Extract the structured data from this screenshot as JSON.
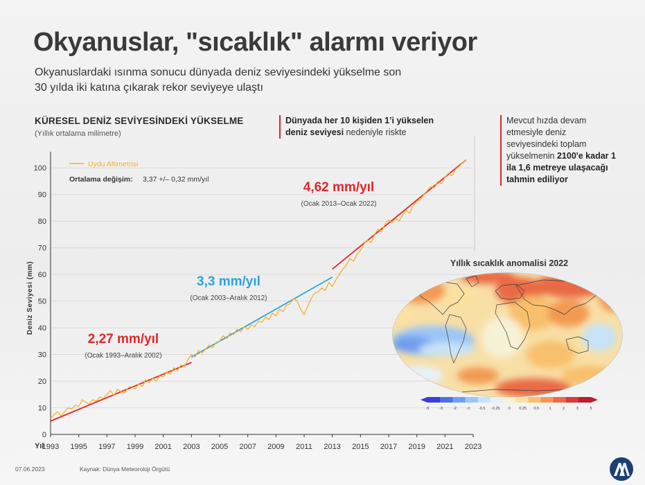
{
  "header": {
    "title": "Okyanuslar, \"sıcaklık\" alarmı veriyor",
    "subtitle_line1": "Okyanuslardaki ısınma sonucu dünyada deniz seviyesindeki yükselme son",
    "subtitle_line2": "30 yılda iki katına çıkarak rekor seviyeye ulaştı"
  },
  "chart_data": {
    "type": "line",
    "title": "KÜRESEL DENİZ SEVİYESİNDEKİ YÜKSELME",
    "subtitle": "(Yıllık ortalama milimetre)",
    "xlabel": "Yıl",
    "ylabel": "Deniz Seviyesi (mm)",
    "xlim": [
      1993,
      2023
    ],
    "ylim": [
      0,
      105
    ],
    "x_ticks": [
      "1993",
      "1995",
      "1997",
      "1999",
      "2001",
      "2003",
      "2005",
      "2007",
      "2009",
      "2011",
      "2013",
      "2015",
      "2017",
      "2019",
      "2021",
      "2023"
    ],
    "y_ticks": [
      "0",
      "10",
      "20",
      "30",
      "40",
      "50",
      "60",
      "70",
      "80",
      "90",
      "100"
    ],
    "legend": {
      "label": "Uydu Altimetrisi",
      "position": "top-left"
    },
    "annotation_mean_label": "Ortalama değişim:",
    "annotation_mean_value": "3,37 +/– 0,32 mm/yıl",
    "series": [
      {
        "name": "Uydu Altimetrisi",
        "color": "#f2b12a",
        "x": [
          1993.0,
          1993.25,
          1993.5,
          1993.75,
          1994.0,
          1994.25,
          1994.5,
          1994.75,
          1995.0,
          1995.25,
          1995.5,
          1995.75,
          1996.0,
          1996.25,
          1996.5,
          1996.75,
          1997.0,
          1997.25,
          1997.5,
          1997.75,
          1998.0,
          1998.25,
          1998.5,
          1998.75,
          1999.0,
          1999.25,
          1999.5,
          1999.75,
          2000.0,
          2000.25,
          2000.5,
          2000.75,
          2001.0,
          2001.25,
          2001.5,
          2001.75,
          2002.0,
          2002.25,
          2002.5,
          2002.75,
          2003.0,
          2003.25,
          2003.5,
          2003.75,
          2004.0,
          2004.25,
          2004.5,
          2004.75,
          2005.0,
          2005.25,
          2005.5,
          2005.75,
          2006.0,
          2006.25,
          2006.5,
          2006.75,
          2007.0,
          2007.25,
          2007.5,
          2007.75,
          2008.0,
          2008.25,
          2008.5,
          2008.75,
          2009.0,
          2009.25,
          2009.5,
          2009.75,
          2010.0,
          2010.25,
          2010.5,
          2010.75,
          2011.0,
          2011.25,
          2011.5,
          2011.75,
          2012.0,
          2012.25,
          2012.5,
          2012.75,
          2013.0,
          2013.25,
          2013.5,
          2013.75,
          2014.0,
          2014.25,
          2014.5,
          2014.75,
          2015.0,
          2015.25,
          2015.5,
          2015.75,
          2016.0,
          2016.25,
          2016.5,
          2016.75,
          2017.0,
          2017.25,
          2017.5,
          2017.75,
          2018.0,
          2018.25,
          2018.5,
          2018.75,
          2019.0,
          2019.25,
          2019.5,
          2019.75,
          2020.0,
          2020.25,
          2020.5,
          2020.75,
          2021.0,
          2021.25,
          2021.5,
          2021.75,
          2022.0,
          2022.25,
          2022.5
        ],
        "values": [
          6.0,
          7.5,
          8.5,
          7.0,
          8.5,
          10.0,
          9.5,
          11.0,
          10.5,
          13.0,
          12.0,
          11.5,
          13.0,
          12.5,
          14.0,
          13.5,
          15.0,
          16.5,
          14.5,
          17.0,
          16.0,
          15.5,
          17.5,
          18.0,
          17.0,
          19.0,
          18.0,
          20.5,
          19.5,
          21.0,
          20.0,
          22.0,
          21.5,
          23.5,
          22.5,
          25.0,
          24.0,
          26.0,
          25.5,
          28.0,
          30.0,
          29.0,
          31.5,
          30.5,
          32.0,
          33.5,
          32.5,
          34.5,
          35.0,
          37.0,
          36.0,
          38.0,
          37.5,
          39.5,
          38.5,
          40.5,
          39.5,
          41.0,
          40.5,
          42.5,
          42.0,
          44.0,
          43.0,
          45.5,
          44.5,
          47.0,
          46.0,
          48.5,
          49.0,
          51.0,
          50.0,
          47.0,
          45.0,
          48.0,
          51.0,
          53.0,
          53.5,
          55.0,
          54.0,
          57.0,
          55.5,
          58.0,
          60.0,
          62.0,
          63.5,
          66.0,
          65.0,
          67.5,
          69.0,
          71.5,
          73.0,
          72.0,
          75.0,
          77.0,
          76.0,
          79.0,
          80.5,
          79.5,
          81.0,
          80.0,
          82.5,
          84.0,
          83.0,
          86.0,
          87.5,
          88.0,
          90.0,
          91.5,
          93.0,
          92.5,
          95.0,
          94.0,
          96.5,
          98.0,
          97.0,
          99.5,
          100.5,
          102.0,
          103.0
        ]
      }
    ],
    "trends": [
      {
        "rate": "2,27 mm/yıl",
        "period": "(Ocak 1993–Aralık 2002)",
        "color": "#e2262b",
        "x": [
          1993.0,
          2003.0
        ],
        "y": [
          5.0,
          27.0
        ]
      },
      {
        "rate": "3,3 mm/yıl",
        "period": "(Ocak 2003–Aralık 2012)",
        "color": "#2aa3dd",
        "x": [
          2003.0,
          2013.0
        ],
        "y": [
          29.0,
          59.0
        ]
      },
      {
        "rate": "4,62 mm/yıl",
        "period": "(Ocak 2013–Ocak 2022)",
        "color": "#e2262b",
        "x": [
          2013.0,
          2022.5
        ],
        "y": [
          62.0,
          103.0
        ]
      }
    ]
  },
  "info_risk": {
    "line1": "Dünyada her 10 kişiden 1’i yükselen",
    "line2_bold": "deniz seviyesi",
    "line2_rest": " nedeniyle riskte"
  },
  "info_2100": {
    "text": "Mevcut hızda devam etmesiyle deniz seviyesindeki toplam yükselmenin",
    "bold": "2100'e kadar 1 ila 1,6 metreye ulaşacağı tahmin ediliyor"
  },
  "map": {
    "title": "Yıllık sıcaklık anomalisi 2022",
    "colorbar_ticks": [
      "-5",
      "-3",
      "-2",
      "-1",
      "-0.5",
      "-0.25",
      "0",
      "0.25",
      "0.5",
      "1",
      "2",
      "3",
      "5"
    ],
    "colorbar_colors": [
      "#3d3bd9",
      "#4f6ee8",
      "#6f9ef0",
      "#9cc6f5",
      "#c7e3f7",
      "#e6f1f7",
      "#f7f1d6",
      "#fbe1a0",
      "#f8c06c",
      "#f29a52",
      "#e96a45",
      "#d63a3a",
      "#b81f2e"
    ]
  },
  "footer": {
    "date": "07.06.2023",
    "source": "Kaynak: Dünya Meteoroloji Örgütü"
  }
}
